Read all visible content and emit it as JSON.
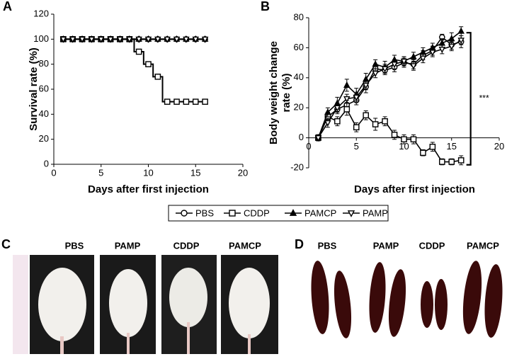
{
  "panels": [
    "A",
    "B",
    "C",
    "D"
  ],
  "legend": [
    {
      "name": "PBS",
      "marker": "circle"
    },
    {
      "name": "CDDP",
      "marker": "square"
    },
    {
      "name": "PAMCP",
      "marker": "triangle"
    },
    {
      "name": "PAMP",
      "marker": "triangle-down"
    }
  ],
  "chart_data": [
    {
      "type": "line",
      "step": true,
      "xlabel": "Days after first injection",
      "ylabel": [
        "Survival rate (%)"
      ],
      "x": [
        1,
        2,
        3,
        4,
        5,
        6,
        7,
        8,
        9,
        10,
        11,
        12,
        13,
        14,
        15,
        16
      ],
      "xlim": [
        0,
        20
      ],
      "xticks": [
        0,
        5,
        10,
        15,
        20
      ],
      "ylim": [
        0,
        120
      ],
      "yticks": [
        0,
        20,
        40,
        60,
        80,
        100,
        120
      ],
      "series": [
        {
          "marker": "circle",
          "color": "#000000",
          "values": [
            100,
            100,
            100,
            100,
            100,
            100,
            100,
            100,
            100,
            100,
            100,
            100,
            100,
            100,
            100,
            100
          ]
        },
        {
          "marker": "square",
          "color": "#000000",
          "values": [
            100,
            100,
            100,
            100,
            100,
            100,
            100,
            100,
            90,
            80,
            70,
            50,
            50,
            50,
            50,
            50
          ]
        },
        {
          "marker": "triangle",
          "color": "#000000",
          "values": [
            100,
            100,
            100,
            100,
            100,
            100,
            100,
            100,
            100,
            100,
            100,
            100,
            100,
            100,
            100,
            100
          ]
        },
        {
          "marker": "triangle-down",
          "color": "#000000",
          "values": [
            100,
            100,
            100,
            100,
            100,
            100,
            100,
            100,
            100,
            100,
            100,
            100,
            100,
            100,
            100,
            100
          ]
        }
      ]
    },
    {
      "type": "line",
      "step": false,
      "xlabel": "Days after first injection",
      "ylabel": [
        "Body weight change",
        "rate (%)"
      ],
      "x": [
        1,
        2,
        3,
        4,
        5,
        6,
        7,
        8,
        9,
        10,
        11,
        12,
        13,
        14,
        15,
        16
      ],
      "xlim": [
        0,
        20
      ],
      "xticks": [
        0,
        5,
        10,
        15,
        20
      ],
      "ylim": [
        -20,
        80
      ],
      "yticks": [
        -20,
        0,
        20,
        40,
        60,
        80
      ],
      "annotation": "***",
      "series": [
        {
          "marker": "circle",
          "color": "#000000",
          "values": [
            0,
            14,
            19,
            22,
            25,
            34,
            46,
            45,
            47,
            50,
            49,
            55,
            58,
            67,
            62,
            64
          ],
          "errors": [
            2,
            3,
            3,
            3,
            3,
            4,
            3,
            3,
            3,
            3,
            3,
            3,
            3,
            2,
            3,
            4
          ]
        },
        {
          "marker": "square",
          "color": "#000000",
          "values": [
            0,
            14,
            11,
            19,
            7,
            15,
            9,
            11,
            2,
            -1,
            -1,
            -10,
            -6,
            -16,
            -16,
            -15
          ],
          "errors": [
            2,
            3,
            3,
            4,
            3,
            3,
            4,
            3,
            3,
            3,
            3,
            2,
            3,
            2,
            2,
            3
          ]
        },
        {
          "marker": "triangle",
          "color": "#000000",
          "values": [
            0,
            17,
            23,
            35,
            29,
            39,
            49,
            47,
            52,
            51,
            54,
            57,
            60,
            63,
            66,
            71
          ],
          "errors": [
            2,
            3,
            4,
            4,
            4,
            4,
            3,
            4,
            3,
            3,
            3,
            3,
            3,
            3,
            4,
            3
          ]
        },
        {
          "marker": "triangle-down",
          "color": "#000000",
          "values": [
            0,
            10,
            20,
            26,
            27,
            35,
            43,
            46,
            49,
            51,
            48,
            53,
            57,
            59,
            61,
            65
          ],
          "errors": [
            2,
            3,
            3,
            3,
            3,
            3,
            3,
            3,
            3,
            3,
            3,
            3,
            3,
            3,
            3,
            3
          ]
        }
      ]
    }
  ],
  "photos_c": [
    "PBS",
    "PAMP",
    "CDDP",
    "PAMCP"
  ],
  "photos_d": [
    "PBS",
    "PAMP",
    "CDDP",
    "PAMCP"
  ]
}
